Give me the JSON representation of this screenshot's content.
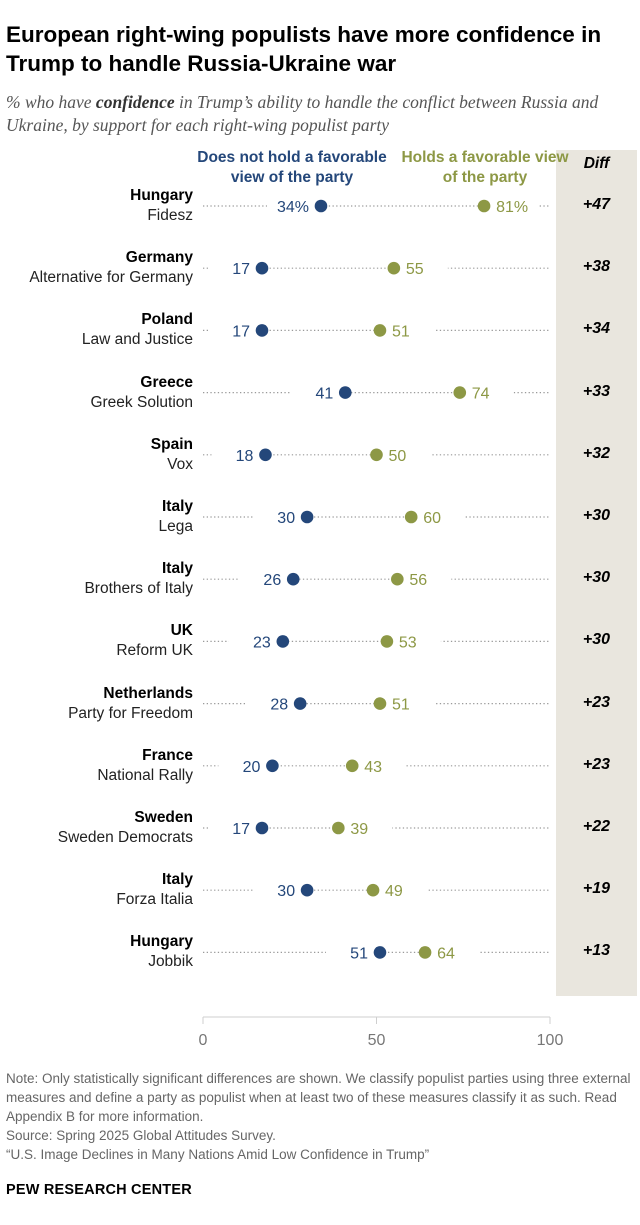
{
  "title": "European right-wing populists have more confidence in Trump to handle Russia-Ukraine war",
  "subtitle": {
    "before": "% who have ",
    "emphasis": "confidence",
    "after": " in Trump’s ability to handle the conflict between Russia and Ukraine, by support for each right-wing populist party"
  },
  "legend": {
    "not_favorable": "Does not hold a favorable view of the party",
    "favorable": "Holds a favorable view of the party",
    "diff": "Diff"
  },
  "colors": {
    "not_favorable": "#24477a",
    "favorable": "#8d9845",
    "diff_band": "#e9e6de"
  },
  "chart_data": {
    "type": "dot",
    "title": "European right-wing populists have more confidence in Trump to handle Russia-Ukraine war",
    "xlim": [
      0,
      100
    ],
    "xticks": [
      0,
      50,
      100
    ],
    "series": [
      {
        "name": "Does not hold a favorable view of the party",
        "key": "not_favorable"
      },
      {
        "name": "Holds a favorable view of the party",
        "key": "favorable"
      }
    ],
    "rows": [
      {
        "country": "Hungary",
        "party": "Fidesz",
        "not_favorable": 34,
        "favorable": 81,
        "not_favorable_label": "34%",
        "favorable_label": "81%",
        "diff": "+47"
      },
      {
        "country": "Germany",
        "party": "Alternative for Germany",
        "not_favorable": 17,
        "favorable": 55,
        "not_favorable_label": "17",
        "favorable_label": "55",
        "diff": "+38"
      },
      {
        "country": "Poland",
        "party": "Law and Justice",
        "not_favorable": 17,
        "favorable": 51,
        "not_favorable_label": "17",
        "favorable_label": "51",
        "diff": "+34"
      },
      {
        "country": "Greece",
        "party": "Greek Solution",
        "not_favorable": 41,
        "favorable": 74,
        "not_favorable_label": "41",
        "favorable_label": "74",
        "diff": "+33"
      },
      {
        "country": "Spain",
        "party": "Vox",
        "not_favorable": 18,
        "favorable": 50,
        "not_favorable_label": "18",
        "favorable_label": "50",
        "diff": "+32"
      },
      {
        "country": "Italy",
        "party": "Lega",
        "not_favorable": 30,
        "favorable": 60,
        "not_favorable_label": "30",
        "favorable_label": "60",
        "diff": "+30"
      },
      {
        "country": "Italy",
        "party": "Brothers of Italy",
        "not_favorable": 26,
        "favorable": 56,
        "not_favorable_label": "26",
        "favorable_label": "56",
        "diff": "+30"
      },
      {
        "country": "UK",
        "party": "Reform UK",
        "not_favorable": 23,
        "favorable": 53,
        "not_favorable_label": "23",
        "favorable_label": "53",
        "diff": "+30"
      },
      {
        "country": "Netherlands",
        "party": "Party for Freedom",
        "not_favorable": 28,
        "favorable": 51,
        "not_favorable_label": "28",
        "favorable_label": "51",
        "diff": "+23"
      },
      {
        "country": "France",
        "party": "National Rally",
        "not_favorable": 20,
        "favorable": 43,
        "not_favorable_label": "20",
        "favorable_label": "43",
        "diff": "+23"
      },
      {
        "country": "Sweden",
        "party": "Sweden Democrats",
        "not_favorable": 17,
        "favorable": 39,
        "not_favorable_label": "17",
        "favorable_label": "39",
        "diff": "+22"
      },
      {
        "country": "Italy",
        "party": "Forza Italia",
        "not_favorable": 30,
        "favorable": 49,
        "not_favorable_label": "30",
        "favorable_label": "49",
        "diff": "+19"
      },
      {
        "country": "Hungary",
        "party": "Jobbik",
        "not_favorable": 51,
        "favorable": 64,
        "not_favorable_label": "51",
        "favorable_label": "64",
        "diff": "+13"
      }
    ]
  },
  "footer": {
    "note": "Note: Only statistically significant differences are shown. We classify populist parties using three external measures and define a party as populist when at least two of these measures classify it as such. Read Appendix B for more information.",
    "source": "Source: Spring 2025 Global Attitudes Survey.",
    "report": "“U.S. Image Declines in Many Nations Amid Low Confidence in Trump”",
    "brand": "PEW RESEARCH CENTER"
  }
}
